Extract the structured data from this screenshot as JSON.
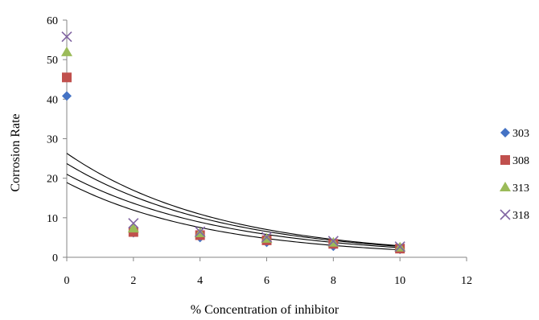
{
  "chart_data": {
    "type": "scatter",
    "title": "",
    "xlabel": "% Concentration of inhibitor",
    "ylabel": "Corrosion Rate",
    "xlim": [
      0,
      12
    ],
    "ylim": [
      0,
      60
    ],
    "x_ticks": [
      "0",
      "2",
      "4",
      "6",
      "8",
      "10",
      "12"
    ],
    "y_ticks": [
      "0",
      "10",
      "20",
      "30",
      "40",
      "50",
      "60"
    ],
    "grid": false,
    "legend_position": "right",
    "x": [
      0,
      2,
      4,
      6,
      8,
      10
    ],
    "series": [
      {
        "name": "303",
        "marker": "diamond",
        "color": "#4472C4",
        "values": [
          40.8,
          6.2,
          5.0,
          3.8,
          2.8,
          2.0
        ],
        "trend": {
          "a": 18.9,
          "b": -0.23
        }
      },
      {
        "name": "308",
        "marker": "square",
        "color": "#C0504D",
        "values": [
          45.5,
          6.4,
          5.6,
          4.3,
          3.4,
          2.2
        ],
        "trend": {
          "a": 21.0,
          "b": -0.215
        }
      },
      {
        "name": "313",
        "marker": "triangle",
        "color": "#9BBB59",
        "values": [
          51.9,
          7.3,
          6.1,
          4.7,
          3.7,
          2.5
        ],
        "trend": {
          "a": 23.7,
          "b": -0.215
        }
      },
      {
        "name": "318",
        "marker": "x",
        "color": "#8064A2",
        "values": [
          55.8,
          8.6,
          6.5,
          5.1,
          4.1,
          2.7
        ],
        "trend": {
          "a": 26.3,
          "b": -0.22
        }
      }
    ]
  }
}
